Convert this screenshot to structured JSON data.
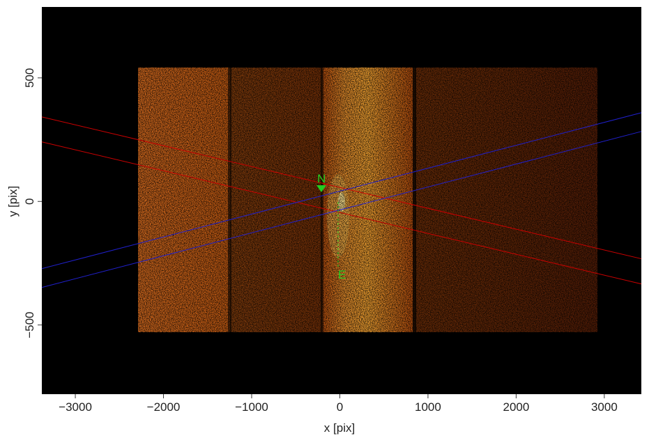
{
  "chart_data": {
    "type": "image",
    "xlabel": "x [pix]",
    "ylabel": "y [pix]",
    "xlim": [
      -3380,
      3420
    ],
    "ylim": [
      -780,
      787
    ],
    "xticks": [
      {
        "value": -3000,
        "label": "−3000"
      },
      {
        "value": -2000,
        "label": "−2000"
      },
      {
        "value": -1000,
        "label": "−1000"
      },
      0,
      1000,
      2000,
      3000
    ],
    "yticks": [
      {
        "value": -500,
        "label": "−500"
      },
      0,
      500
    ],
    "compass": {
      "north": "N",
      "east": "E",
      "color": "#22cc22"
    },
    "lines": [
      {
        "color": "#cc0000",
        "x": [
          -3380,
          3420
        ],
        "y": [
          342,
          -232
        ]
      },
      {
        "color": "#cc0000",
        "x": [
          -3380,
          3420
        ],
        "y": [
          241,
          -334
        ]
      },
      {
        "color": "#2020cc",
        "x": [
          -3380,
          3420
        ],
        "y": [
          -272,
          359
        ]
      },
      {
        "color": "#2020cc",
        "x": [
          -3380,
          3420
        ],
        "y": [
          -348,
          283
        ]
      }
    ]
  }
}
